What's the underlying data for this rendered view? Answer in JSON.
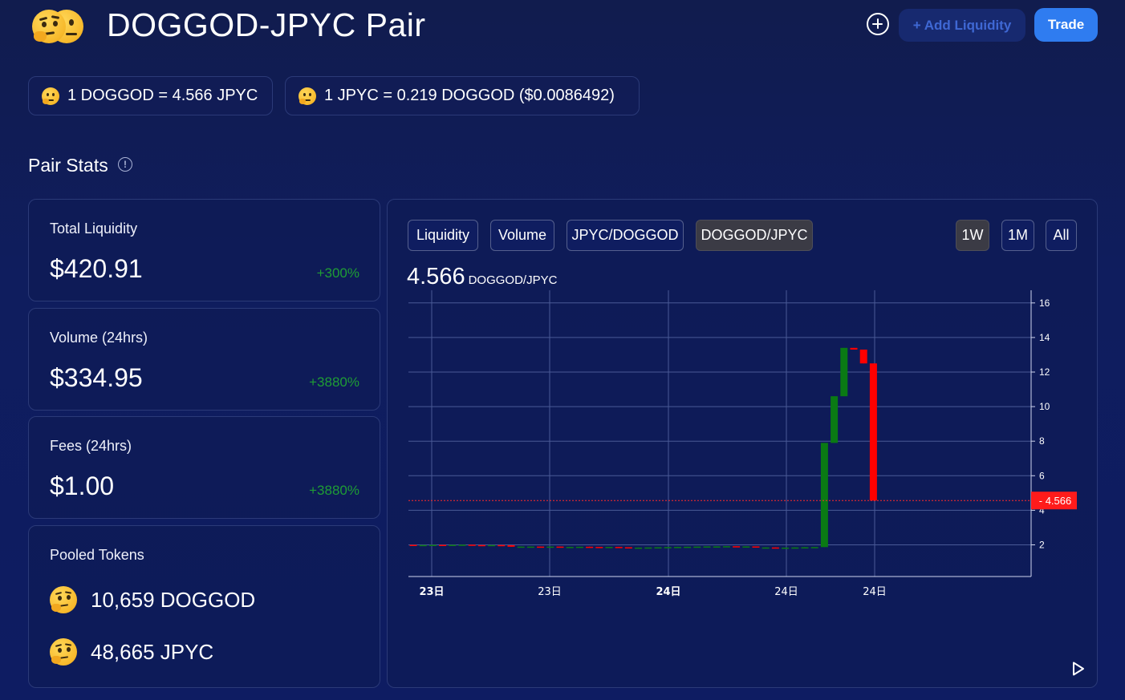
{
  "header": {
    "title": "DOGGOD-JPYC Pair",
    "add_liquidity_label": "+ Add Liquidity",
    "trade_label": "Trade"
  },
  "rates": [
    {
      "text": "1 DOGGOD = 4.566 JPYC",
      "icon": "thinking-face-icon"
    },
    {
      "text": "1 JPYC = 0.219 DOGGOD ($0.0086492)",
      "icon": "thinking-face-icon"
    }
  ],
  "stats": {
    "section_title": "Pair Stats",
    "info_glyph": "!",
    "total_liquidity": {
      "label": "Total Liquidity",
      "value": "$420.91",
      "change": "+300%"
    },
    "volume": {
      "label": "Volume (24hrs)",
      "value": "$334.95",
      "change": "+3880%"
    },
    "fees": {
      "label": "Fees (24hrs)",
      "value": "$1.00",
      "change": "+3880%"
    },
    "pooled": {
      "label": "Pooled Tokens",
      "tokens": [
        {
          "text": "10,659 DOGGOD"
        },
        {
          "text": "48,665 JPYC"
        }
      ]
    }
  },
  "chart_panel": {
    "tabs": [
      "Liquidity",
      "Volume",
      "JPYC/DOGGOD",
      "DOGGOD/JPYC"
    ],
    "active_tab": "DOGGOD/JPYC",
    "ranges": [
      "1W",
      "1M",
      "All"
    ],
    "active_range": "1W",
    "price": "4.566",
    "price_unit": "DOGGOD/JPYC"
  },
  "colors": {
    "accent": "#2f7cf0",
    "up": "#1f9d35",
    "candle_up": "#0a7a14",
    "candle_down": "#ff0000",
    "last_price_tag": "#ff1b1b"
  },
  "chart_data": {
    "type": "candlestick",
    "y_ticks": [
      2,
      4,
      6,
      8,
      10,
      12,
      14,
      16
    ],
    "ylim": [
      0,
      16.5
    ],
    "x_ticks": [
      {
        "label": "23日",
        "bold": true
      },
      {
        "label": "23日",
        "bold": false
      },
      {
        "label": "24日",
        "bold": true
      },
      {
        "label": "24日",
        "bold": false
      },
      {
        "label": "24日",
        "bold": false
      }
    ],
    "last_price": 4.566,
    "last_price_label": "4.566",
    "candles": [
      {
        "o": 2.0,
        "h": 2.0,
        "l": 2.0,
        "c": 1.99
      },
      {
        "o": 1.99,
        "h": 2.0,
        "l": 1.99,
        "c": 1.99
      },
      {
        "o": 1.99,
        "h": 2.0,
        "l": 1.99,
        "c": 2.0
      },
      {
        "o": 2.0,
        "h": 2.0,
        "l": 1.99,
        "c": 1.99
      },
      {
        "o": 1.99,
        "h": 2.0,
        "l": 1.99,
        "c": 2.0
      },
      {
        "o": 2.0,
        "h": 2.01,
        "l": 2.0,
        "c": 2.01
      },
      {
        "o": 2.01,
        "h": 2.01,
        "l": 1.99,
        "c": 1.99
      },
      {
        "o": 1.99,
        "h": 1.99,
        "l": 1.97,
        "c": 1.97
      },
      {
        "o": 1.97,
        "h": 1.99,
        "l": 1.97,
        "c": 1.99
      },
      {
        "o": 1.99,
        "h": 2.0,
        "l": 1.98,
        "c": 1.98
      },
      {
        "o": 1.98,
        "h": 1.98,
        "l": 1.89,
        "c": 1.89
      },
      {
        "o": 1.89,
        "h": 1.91,
        "l": 1.88,
        "c": 1.9
      },
      {
        "o": 1.9,
        "h": 1.91,
        "l": 1.9,
        "c": 1.9
      },
      {
        "o": 1.9,
        "h": 1.9,
        "l": 1.89,
        "c": 1.89
      },
      {
        "o": 1.89,
        "h": 1.9,
        "l": 1.89,
        "c": 1.9
      },
      {
        "o": 1.9,
        "h": 1.9,
        "l": 1.87,
        "c": 1.87
      },
      {
        "o": 1.87,
        "h": 1.89,
        "l": 1.87,
        "c": 1.88
      },
      {
        "o": 1.88,
        "h": 1.89,
        "l": 1.87,
        "c": 1.89
      },
      {
        "o": 1.89,
        "h": 1.9,
        "l": 1.88,
        "c": 1.88
      },
      {
        "o": 1.88,
        "h": 1.88,
        "l": 1.87,
        "c": 1.87
      },
      {
        "o": 1.87,
        "h": 1.88,
        "l": 1.86,
        "c": 1.88
      },
      {
        "o": 1.88,
        "h": 1.89,
        "l": 1.86,
        "c": 1.86
      },
      {
        "o": 1.86,
        "h": 1.86,
        "l": 1.82,
        "c": 1.82
      },
      {
        "o": 1.82,
        "h": 1.85,
        "l": 1.82,
        "c": 1.84
      },
      {
        "o": 1.84,
        "h": 1.85,
        "l": 1.84,
        "c": 1.85
      },
      {
        "o": 1.85,
        "h": 1.86,
        "l": 1.85,
        "c": 1.86
      },
      {
        "o": 1.86,
        "h": 1.87,
        "l": 1.86,
        "c": 1.87
      },
      {
        "o": 1.87,
        "h": 1.89,
        "l": 1.87,
        "c": 1.88
      },
      {
        "o": 1.88,
        "h": 1.89,
        "l": 1.87,
        "c": 1.89
      },
      {
        "o": 1.89,
        "h": 1.9,
        "l": 1.89,
        "c": 1.9
      },
      {
        "o": 1.9,
        "h": 1.91,
        "l": 1.9,
        "c": 1.91
      },
      {
        "o": 1.91,
        "h": 1.92,
        "l": 1.91,
        "c": 1.91
      },
      {
        "o": 1.91,
        "h": 1.92,
        "l": 1.91,
        "c": 1.92
      },
      {
        "o": 1.92,
        "h": 1.92,
        "l": 1.91,
        "c": 1.91
      },
      {
        "o": 1.91,
        "h": 1.92,
        "l": 1.91,
        "c": 1.91
      },
      {
        "o": 1.91,
        "h": 1.91,
        "l": 1.84,
        "c": 1.84
      },
      {
        "o": 1.84,
        "h": 1.86,
        "l": 1.84,
        "c": 1.85
      },
      {
        "o": 1.85,
        "h": 1.85,
        "l": 1.83,
        "c": 1.83
      },
      {
        "o": 1.83,
        "h": 1.84,
        "l": 1.83,
        "c": 1.84
      },
      {
        "o": 1.84,
        "h": 1.86,
        "l": 1.84,
        "c": 1.85
      },
      {
        "o": 1.85,
        "h": 1.87,
        "l": 1.85,
        "c": 1.86
      },
      {
        "o": 1.86,
        "h": 1.87,
        "l": 1.86,
        "c": 1.87
      },
      {
        "o": 1.87,
        "h": 7.9,
        "l": 1.87,
        "c": 7.9
      },
      {
        "o": 7.9,
        "h": 10.6,
        "l": 7.9,
        "c": 10.6
      },
      {
        "o": 10.6,
        "h": 13.4,
        "l": 10.6,
        "c": 13.4
      },
      {
        "o": 13.4,
        "h": 13.4,
        "l": 13.3,
        "c": 13.3
      },
      {
        "o": 13.3,
        "h": 13.3,
        "l": 12.5,
        "c": 12.5
      },
      {
        "o": 12.5,
        "h": 12.5,
        "l": 4.566,
        "c": 4.566
      }
    ]
  }
}
